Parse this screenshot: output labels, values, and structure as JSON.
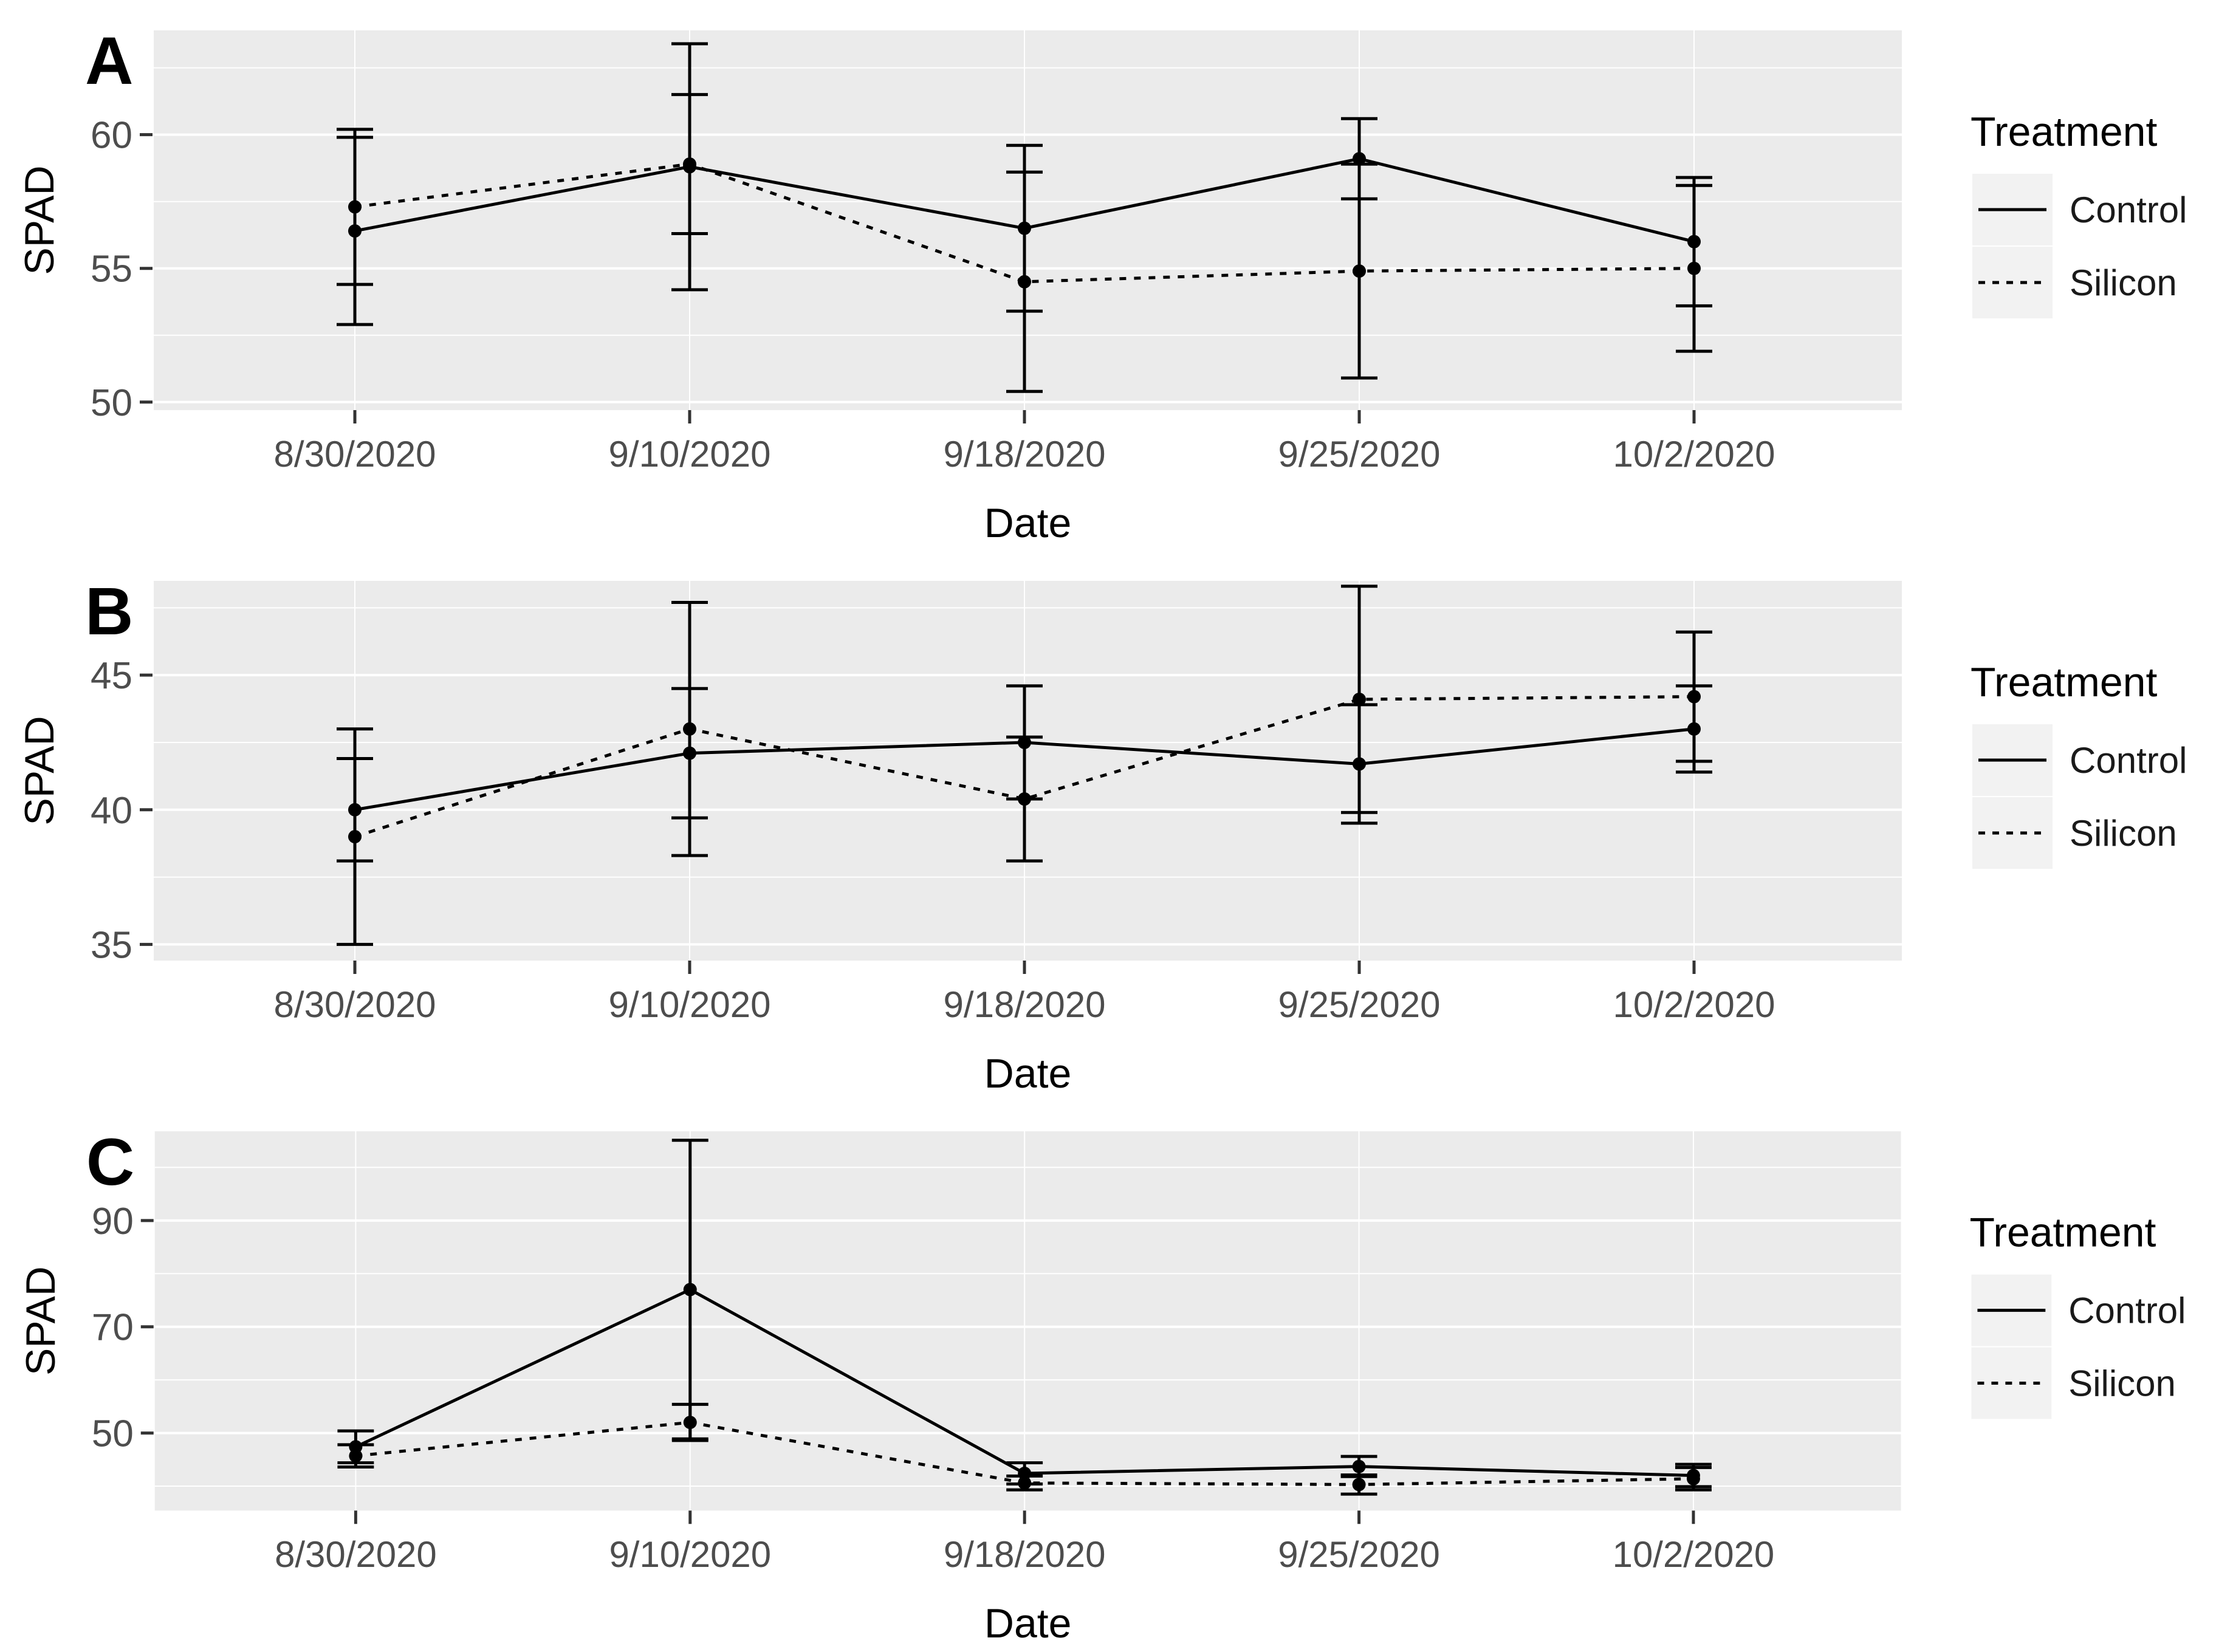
{
  "figure": {
    "y_axis_title": "SPAD",
    "x_axis_title": "Date",
    "dates": [
      "8/30/2020",
      "9/10/2020",
      "9/18/2020",
      "9/25/2020",
      "10/2/2020"
    ],
    "legend": {
      "title": "Treatment",
      "entries": [
        {
          "label": "Control",
          "linetype": "solid"
        },
        {
          "label": "Silicon",
          "linetype": "dotted"
        }
      ]
    },
    "colors": {
      "panel_background": "#EBEBEB",
      "gridline": "#FFFFFF",
      "legend_key_background": "#F2F2F2",
      "tick_label": "#4D4D4D",
      "axis_title": "#000000",
      "series": "#000000",
      "tick_mark": "#333333"
    }
  },
  "chart_data": [
    {
      "type": "line",
      "panel_label": "A",
      "xlabel": "Date",
      "ylabel": "SPAD",
      "x": [
        "8/30/2020",
        "9/10/2020",
        "9/18/2020",
        "9/25/2020",
        "10/2/2020"
      ],
      "ylim": [
        49.7,
        63.9
      ],
      "yticks": [
        50,
        55,
        60
      ],
      "yminor": [
        52.5,
        57.5,
        62.5
      ],
      "grid": true,
      "legend_position": "right",
      "series": [
        {
          "name": "Control",
          "linetype": "solid",
          "values": [
            56.4,
            58.8,
            56.5,
            59.1,
            56.0
          ],
          "err_low": [
            52.9,
            54.2,
            53.4,
            57.6,
            53.6
          ],
          "err_high": [
            59.9,
            63.4,
            59.6,
            60.6,
            58.4
          ]
        },
        {
          "name": "Silicon",
          "linetype": "dotted",
          "values": [
            57.3,
            58.9,
            54.5,
            54.9,
            55.0
          ],
          "err_low": [
            54.4,
            56.3,
            50.4,
            50.9,
            51.9
          ],
          "err_high": [
            60.2,
            61.5,
            58.6,
            58.9,
            58.1
          ]
        }
      ]
    },
    {
      "type": "line",
      "panel_label": "B",
      "xlabel": "Date",
      "ylabel": "SPAD",
      "x": [
        "8/30/2020",
        "9/10/2020",
        "9/18/2020",
        "9/25/2020",
        "10/2/2020"
      ],
      "ylim": [
        34.4,
        48.5
      ],
      "yticks": [
        35,
        40,
        45
      ],
      "yminor": [
        37.5,
        42.5,
        47.5
      ],
      "grid": true,
      "legend_position": "right",
      "series": [
        {
          "name": "Control",
          "linetype": "solid",
          "values": [
            40.0,
            42.1,
            42.5,
            41.7,
            43.0
          ],
          "err_low": [
            38.1,
            39.7,
            40.4,
            39.5,
            41.4
          ],
          "err_high": [
            41.9,
            44.5,
            44.6,
            43.9,
            44.6
          ]
        },
        {
          "name": "Silicon",
          "linetype": "dotted",
          "values": [
            39.0,
            43.0,
            40.4,
            44.1,
            44.2
          ],
          "err_low": [
            35.0,
            38.3,
            38.1,
            39.9,
            41.8
          ],
          "err_high": [
            43.0,
            47.7,
            42.7,
            48.3,
            46.6
          ]
        }
      ]
    },
    {
      "type": "line",
      "panel_label": "C",
      "xlabel": "Date",
      "ylabel": "SPAD",
      "x": [
        "8/30/2020",
        "9/10/2020",
        "9/18/2020",
        "9/25/2020",
        "10/2/2020"
      ],
      "ylim": [
        35.4,
        106.8
      ],
      "yticks": [
        50,
        70,
        90
      ],
      "yminor": [
        40,
        60,
        80,
        100
      ],
      "grid": true,
      "legend_position": "right",
      "series": [
        {
          "name": "Control",
          "linetype": "solid",
          "values": [
            47.4,
            77.0,
            42.4,
            43.7,
            42.0
          ],
          "err_low": [
            44.4,
            48.9,
            40.4,
            41.8,
            39.9
          ],
          "err_high": [
            50.4,
            105.1,
            44.4,
            45.6,
            44.1
          ]
        },
        {
          "name": "Silicon",
          "linetype": "dotted",
          "values": [
            45.7,
            52.0,
            40.6,
            40.3,
            41.4
          ],
          "err_low": [
            43.6,
            48.6,
            39.3,
            38.5,
            39.3
          ],
          "err_high": [
            47.8,
            55.4,
            41.9,
            42.1,
            43.5
          ]
        }
      ]
    }
  ]
}
